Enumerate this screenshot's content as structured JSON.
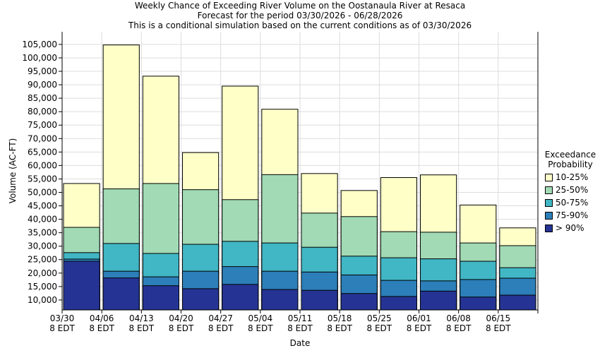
{
  "chart_data": {
    "type": "bar",
    "title": "Weekly Chance of Exceeding River Volume on the Oostanaula River at Resaca",
    "subtitle": "Forecast for the period 03/30/2026 - 06/28/2026",
    "subtitle2": "This is a conditional simulation based on the current conditions as of 03/30/2026",
    "x_label": "Date",
    "y_label": "Volume (AC-FT)",
    "categories": [
      "03/30",
      "04/06",
      "04/13",
      "04/20",
      "04/27",
      "05/04",
      "05/11",
      "05/18",
      "05/25",
      "06/01",
      "06/08",
      "06/15",
      null
    ],
    "category_sublabels": [
      "8 EDT",
      "8 EDT",
      "8 EDT",
      "8 EDT",
      "8 EDT",
      "8 EDT",
      "8 EDT",
      "8 EDT",
      "8 EDT",
      "8 EDT",
      "8 EDT",
      "8 EDT",
      null
    ],
    "legend_title": "Exceedance Probability",
    "series": [
      {
        "name": "10-25%",
        "color": "#ffffc8",
        "values": [
          53300,
          104800,
          93200,
          64800,
          89500,
          80900,
          57000,
          50700,
          55500,
          56500,
          45300,
          36800,
          null
        ]
      },
      {
        "name": "25-50%",
        "color": "#a1dab4",
        "values": [
          37000,
          51300,
          53300,
          51000,
          47300,
          56600,
          42300,
          41000,
          35400,
          35200,
          31200,
          30200,
          null
        ]
      },
      {
        "name": "50-75%",
        "color": "#41b6c4",
        "values": [
          27600,
          31000,
          27300,
          30700,
          31800,
          31200,
          29600,
          26300,
          25700,
          25300,
          24400,
          22000,
          null
        ]
      },
      {
        "name": "75-90%",
        "color": "#2c7fb8",
        "values": [
          25200,
          20700,
          18600,
          20700,
          22400,
          20700,
          20400,
          19300,
          17300,
          17100,
          17600,
          18100,
          null
        ]
      },
      {
        "name": "> 90%",
        "color": "#253494",
        "values": [
          24400,
          18200,
          15300,
          14200,
          15800,
          13900,
          13600,
          12400,
          11300,
          13300,
          11100,
          11800,
          null
        ]
      }
    ],
    "ylim": [
      6300,
      109700
    ],
    "yticks": [
      {
        "value": 10000,
        "label": "10,000"
      },
      {
        "value": 15000,
        "label": "15,000"
      },
      {
        "value": 20000,
        "label": "20,000"
      },
      {
        "value": 25000,
        "label": "25,000"
      },
      {
        "value": 30000,
        "label": "30,000"
      },
      {
        "value": 35000,
        "label": "35,000"
      },
      {
        "value": 40000,
        "label": "40,000"
      },
      {
        "value": 45000,
        "label": "45,000"
      },
      {
        "value": 50000,
        "label": "50,000"
      },
      {
        "value": 55000,
        "label": "55,000"
      },
      {
        "value": 60000,
        "label": "60,000"
      },
      {
        "value": 65000,
        "label": "65,000"
      },
      {
        "value": 70000,
        "label": "70,000"
      },
      {
        "value": 75000,
        "label": "75,000"
      },
      {
        "value": 80000,
        "label": "80,000"
      },
      {
        "value": 85000,
        "label": "85,000"
      },
      {
        "value": 90000,
        "label": "90,000"
      },
      {
        "value": 95000,
        "label": "95,000"
      },
      {
        "value": 100000,
        "label": "100,000"
      },
      {
        "value": 105000,
        "label": "105,000"
      }
    ],
    "grid": true
  }
}
